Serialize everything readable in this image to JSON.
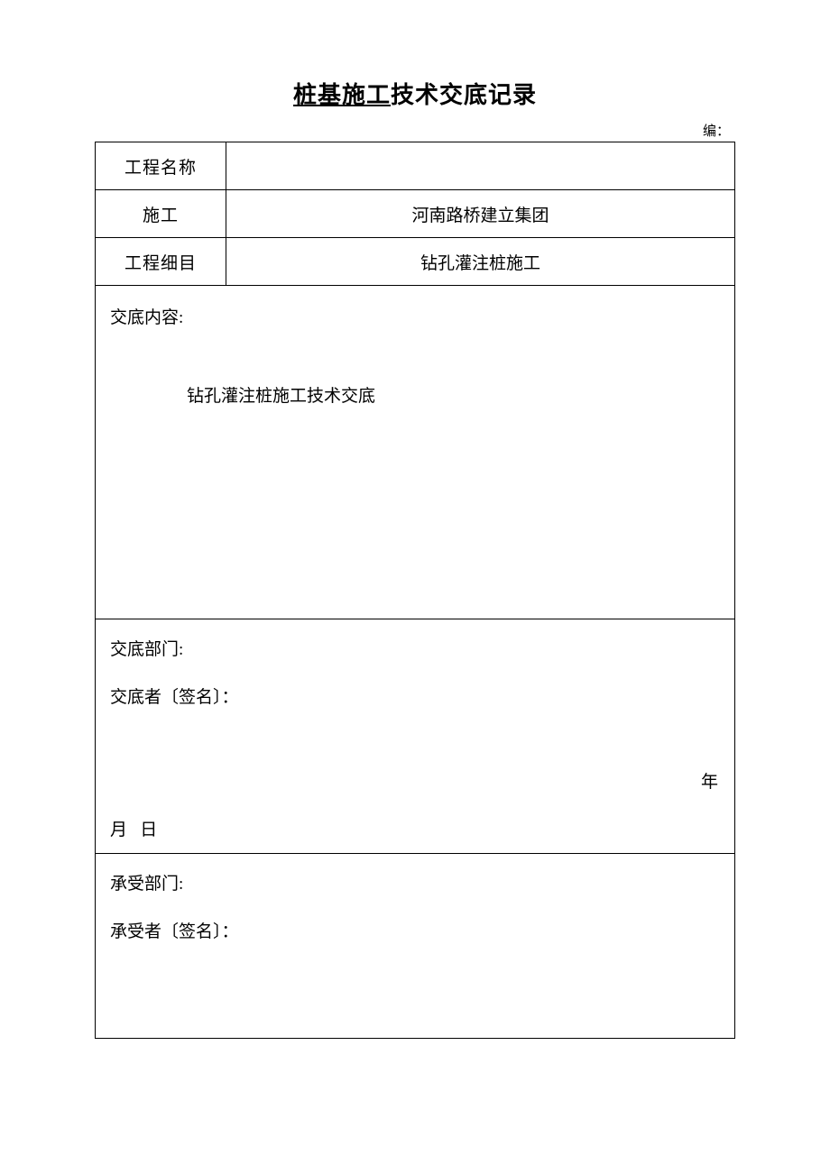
{
  "title": {
    "underlined": "桩基施工",
    "rest": "技术交底记录"
  },
  "bian_label": "编：",
  "header_rows": {
    "project_name": {
      "label": "工程名称",
      "value": ""
    },
    "construction": {
      "label": "施工",
      "value": "河南路桥建立集团"
    },
    "project_detail": {
      "label": "工程细目",
      "value": "钻孔灌注桩施工"
    }
  },
  "content": {
    "label": "交底内容:",
    "body": "钻孔灌注桩施工技术交底"
  },
  "delivery": {
    "dept_label": "交底部门:",
    "signer_label": "交底者〔签名〕：",
    "year": "年",
    "month": "月",
    "day": "日"
  },
  "receive": {
    "dept_label": "承受部门:",
    "signer_label": "承受者〔签名〕："
  },
  "colors": {
    "text": "#000000",
    "background": "#ffffff",
    "border": "#000000"
  }
}
